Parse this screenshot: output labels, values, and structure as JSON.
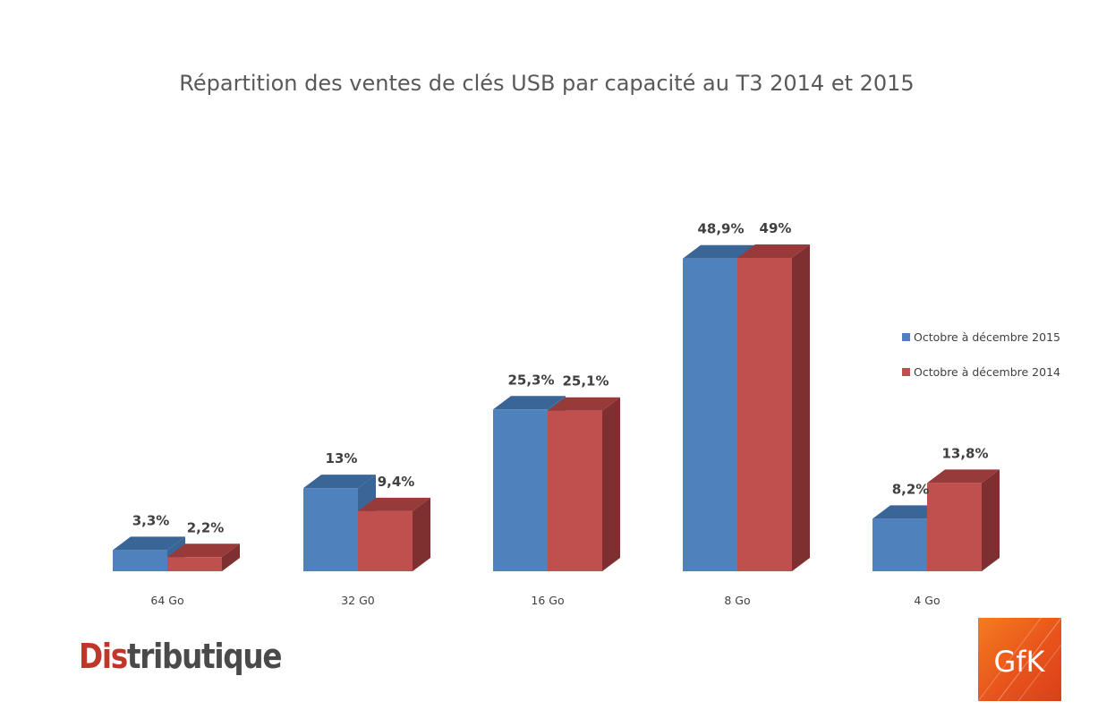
{
  "chart_data": {
    "type": "bar",
    "title": "Répartition des ventes de clés USB par capacité au T3 2014 et 2015",
    "categories": [
      "64 Go",
      "32 G0",
      "16 Go",
      "8 Go",
      "4 Go"
    ],
    "series": [
      {
        "name": "Octobre à décembre 2015",
        "values": [
          3.3,
          13,
          25.3,
          48.9,
          8.2
        ],
        "labels": [
          "3,3%",
          "13%",
          "25,3%",
          "48,9%",
          "8,2%"
        ],
        "color": "#4f81bd",
        "top_color": "#3a6597"
      },
      {
        "name": "Octobre à décembre 2014",
        "values": [
          2.2,
          9.4,
          25.1,
          49,
          13.8
        ],
        "labels": [
          "2,2%",
          "9,4%",
          "25,1%",
          "49%",
          "13,8%"
        ],
        "color": "#c0504d",
        "top_color": "#98393a",
        "side_color": "#7e2f2f"
      }
    ],
    "ylim": [
      0,
      50
    ],
    "grid": false,
    "legend_position": "right",
    "style": "3d-clustered-column"
  },
  "logos": {
    "left": {
      "red_part": "Dis",
      "dark_part": "tributique"
    },
    "right": {
      "text": "GfK"
    }
  }
}
